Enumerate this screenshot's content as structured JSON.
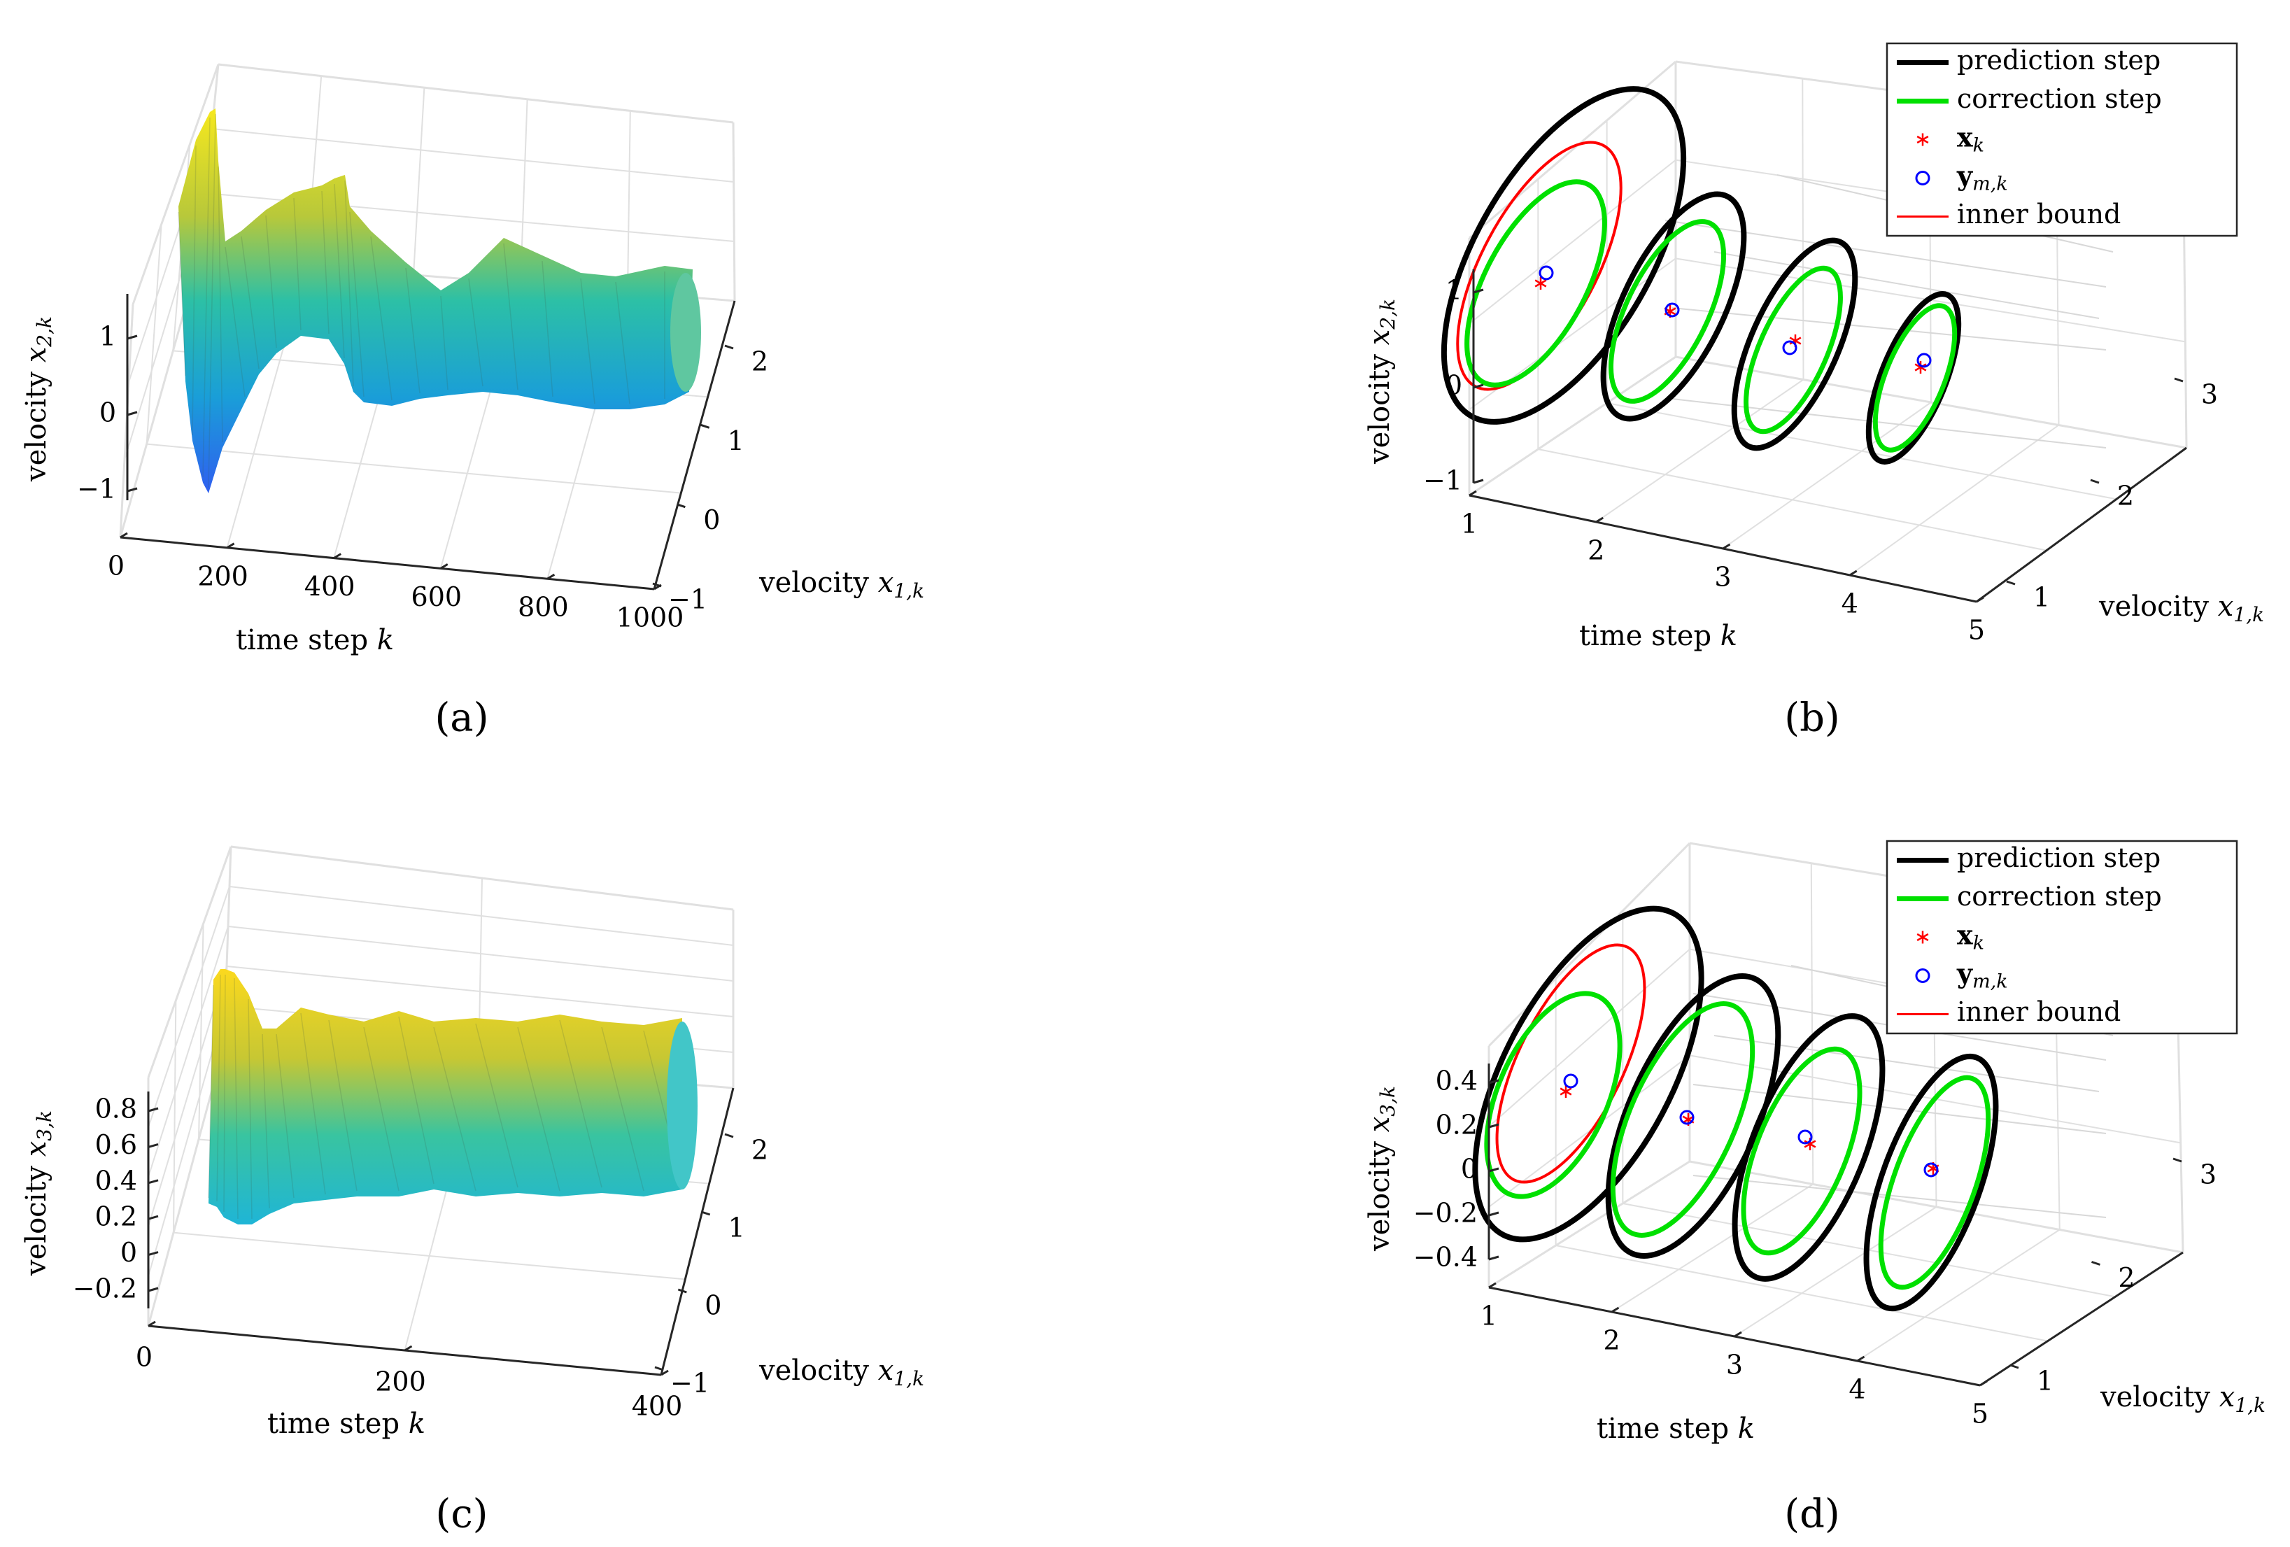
{
  "figure": {
    "panels": [
      {
        "id": "a",
        "label": "(a)"
      },
      {
        "id": "b",
        "label": "(b)"
      },
      {
        "id": "c",
        "label": "(c)"
      },
      {
        "id": "d",
        "label": "(d)"
      }
    ],
    "legend_entries": [
      {
        "label": "prediction step",
        "color": "#000000",
        "style": "thick-line"
      },
      {
        "label": "correction step",
        "color": "#00e000",
        "style": "thick-line"
      },
      {
        "label": "x_k",
        "color": "#ff0000",
        "style": "asterisk-marker"
      },
      {
        "label": "y_m,k",
        "color": "#0000ff",
        "style": "circle-marker"
      },
      {
        "label": "inner bound",
        "color": "#ff0000",
        "style": "thin-line"
      }
    ]
  },
  "chart_data": [
    {
      "id": "a",
      "type": "surface3d",
      "xlabel": "time step k",
      "ylabel": "velocity x_{1,k}",
      "zlabel": "velocity x_{2,k}",
      "xticks": [
        "0",
        "200",
        "400",
        "600",
        "800",
        "1000"
      ],
      "yticks": [
        "−1",
        "0",
        "1",
        "2"
      ],
      "zticks": [
        "−1",
        "0",
        "1"
      ],
      "xlim": [
        0,
        1000
      ],
      "ylim": [
        -1,
        2.3
      ],
      "zlim": [
        -1.5,
        1.5
      ],
      "colormap": "parula"
    },
    {
      "id": "b",
      "type": "ellipsoid-tube3d",
      "xlabel": "time step k",
      "ylabel": "velocity x_{1,k}",
      "zlabel": "velocity x_{2,k}",
      "xticks": [
        "1",
        "2",
        "3",
        "4",
        "5"
      ],
      "yticks": [
        "1",
        "2",
        "3"
      ],
      "zticks": [
        "−1",
        "0",
        "1"
      ],
      "steps": [
        1,
        2,
        3,
        4
      ],
      "legend": [
        "prediction step",
        "correction step",
        "x_k",
        "y_m,k",
        "inner bound"
      ]
    },
    {
      "id": "c",
      "type": "surface3d",
      "xlabel": "time step k",
      "ylabel": "velocity x_{1,k}",
      "zlabel": "velocity x_{3,k}",
      "xticks": [
        "0",
        "200",
        "400"
      ],
      "yticks": [
        "−1",
        "0",
        "1",
        "2"
      ],
      "zticks": [
        "−0.2",
        "0",
        "0.2",
        "0.4",
        "0.6",
        "0.8"
      ],
      "xlim": [
        0,
        400
      ],
      "ylim": [
        -1,
        2.3
      ],
      "zlim": [
        -0.3,
        0.9
      ],
      "colormap": "parula"
    },
    {
      "id": "d",
      "type": "ellipsoid-tube3d",
      "xlabel": "time step k",
      "ylabel": "velocity x_{1,k}",
      "zlabel": "velocity x_{3,k}",
      "xticks": [
        "1",
        "2",
        "3",
        "4",
        "5"
      ],
      "yticks": [
        "1",
        "2",
        "3"
      ],
      "zticks": [
        "−0.4",
        "−0.2",
        "0",
        "0.2",
        "0.4"
      ],
      "steps": [
        1,
        2,
        3,
        4
      ],
      "legend": [
        "prediction step",
        "correction step",
        "x_k",
        "y_m,k",
        "inner bound"
      ]
    }
  ]
}
